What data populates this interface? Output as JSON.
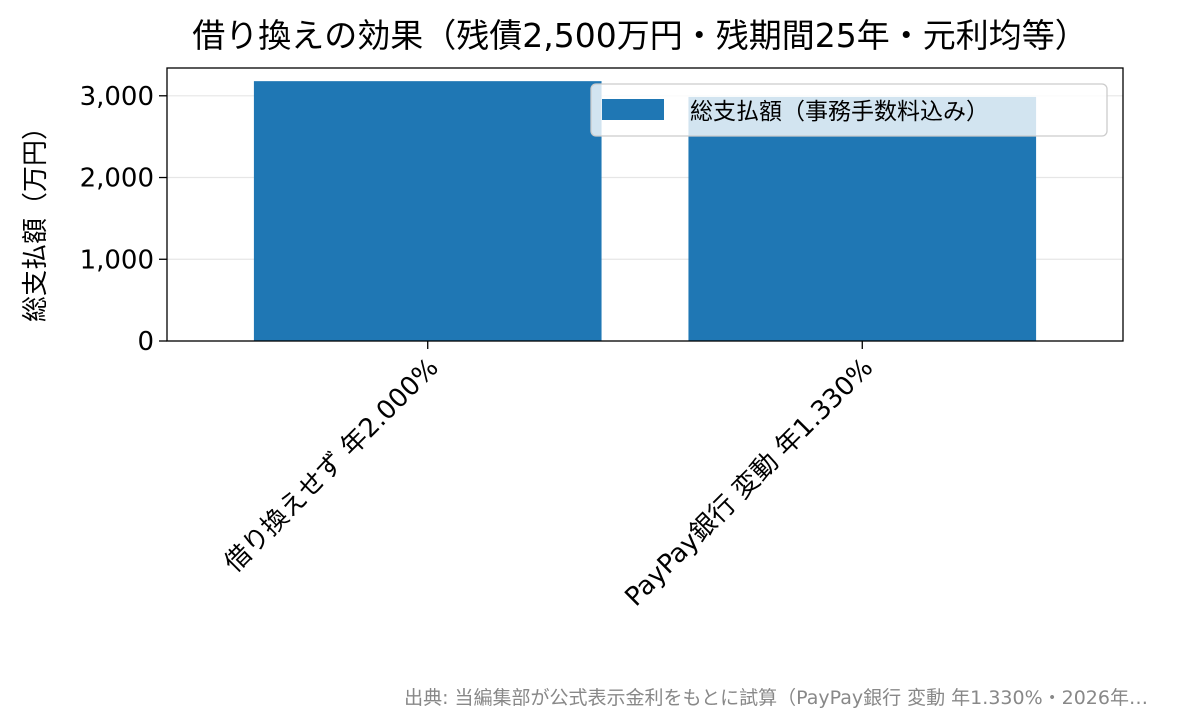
{
  "chart_data": {
    "type": "bar",
    "title": "借り換えの効果（残債2,500万円・残期間25年・元利均等）",
    "xlabel": "",
    "ylabel": "総支払額（万円）",
    "categories": [
      "借り換えせず 年2.000%",
      "PayPay銀行 変動 年1.330%"
    ],
    "series": [
      {
        "name": "総支払額（事務手数料込み）",
        "values": [
          3179,
          2986
        ],
        "color": "#1f77b4"
      }
    ],
    "ylim": [
      0,
      3340
    ],
    "yticks": [
      0,
      1000,
      2000,
      3000
    ],
    "ytick_labels": [
      "0",
      "1,000",
      "2,000",
      "3,000"
    ],
    "grid": "y",
    "legend_position": "top-right"
  },
  "source_note": "出典: 当編集部が公式表示金利をもとに試算（PayPay銀行 変動 年1.330%・2026年…"
}
